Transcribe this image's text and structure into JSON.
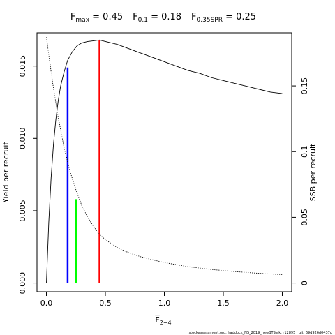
{
  "chart_data": {
    "type": "line",
    "title": {
      "fmax": {
        "base": "F",
        "sub": "max",
        "value": " = 0.45"
      },
      "f01": {
        "base": "F",
        "sub": "0.1",
        "value": " = 0.18"
      },
      "fspr": {
        "base": "F",
        "sub": "0.35SPR",
        "value": " = 0.25"
      }
    },
    "xlabel": {
      "base": "F",
      "sub": "2−4"
    },
    "ylabel_left": "Yield per recruit",
    "ylabel_right": "SSB per recruit",
    "xlim": [
      -0.08,
      2.08
    ],
    "ylim_left": [
      -0.0006,
      0.0173
    ],
    "ylim_right": [
      -0.0066,
      0.1904
    ],
    "x_ticks": [
      {
        "value": 0.0,
        "label": "0.0"
      },
      {
        "value": 0.5,
        "label": "0.5"
      },
      {
        "value": 1.0,
        "label": "1.0"
      },
      {
        "value": 1.5,
        "label": "1.5"
      },
      {
        "value": 2.0,
        "label": "2.0"
      }
    ],
    "y_ticks_left": [
      {
        "value": 0.0,
        "label": "0.000"
      },
      {
        "value": 0.005,
        "label": "0.005"
      },
      {
        "value": 0.01,
        "label": "0.010"
      },
      {
        "value": 0.015,
        "label": "0.015"
      }
    ],
    "y_ticks_right": [
      {
        "value": 0.0,
        "label": "0"
      },
      {
        "value": 0.05,
        "label": "0.05"
      },
      {
        "value": 0.1,
        "label": "0.1"
      },
      {
        "value": 0.15,
        "label": "0.15"
      }
    ],
    "series": [
      {
        "axis": "left",
        "style": "solid",
        "color": "#000000",
        "x": [
          0,
          0.02,
          0.04,
          0.06,
          0.08,
          0.1,
          0.12,
          0.15,
          0.18,
          0.22,
          0.26,
          0.3,
          0.35,
          0.4,
          0.45,
          0.5,
          0.6,
          0.7,
          0.8,
          0.9,
          1.0,
          1.1,
          1.2,
          1.3,
          1.4,
          1.5,
          1.6,
          1.7,
          1.8,
          1.9,
          2.0
        ],
        "values": [
          0.0,
          0.0042,
          0.0073,
          0.0096,
          0.0113,
          0.0126,
          0.0136,
          0.0146,
          0.0154,
          0.016,
          0.0164,
          0.0166,
          0.0167,
          0.01675,
          0.0168,
          0.0167,
          0.0165,
          0.0162,
          0.0159,
          0.0156,
          0.0153,
          0.015,
          0.0147,
          0.0145,
          0.0142,
          0.014,
          0.0138,
          0.0136,
          0.0134,
          0.0132,
          0.0131
        ]
      },
      {
        "axis": "right",
        "style": "dotted",
        "color": "#000000",
        "x": [
          0,
          0.05,
          0.1,
          0.15,
          0.2,
          0.25,
          0.3,
          0.35,
          0.4,
          0.45,
          0.5,
          0.6,
          0.7,
          0.8,
          0.9,
          1.0,
          1.2,
          1.4,
          1.6,
          1.8,
          2.0
        ],
        "values": [
          0.187,
          0.154,
          0.126,
          0.103,
          0.085,
          0.071,
          0.059,
          0.05,
          0.043,
          0.037,
          0.033,
          0.027,
          0.023,
          0.02,
          0.0177,
          0.0156,
          0.0125,
          0.0103,
          0.0087,
          0.0074,
          0.0065
        ]
      }
    ],
    "reference_lines": [
      {
        "x": 0.18,
        "y": 0.0149,
        "color": "#0000ff"
      },
      {
        "x": 0.25,
        "y": 0.0058,
        "color": "#00ff00"
      },
      {
        "x": 0.45,
        "y": 0.0168,
        "color": "#ff0000"
      }
    ],
    "footer": "stockassessment.org, haddock_NS_2019_newBTSalk, r12895 , git: 69d926d0437d"
  }
}
